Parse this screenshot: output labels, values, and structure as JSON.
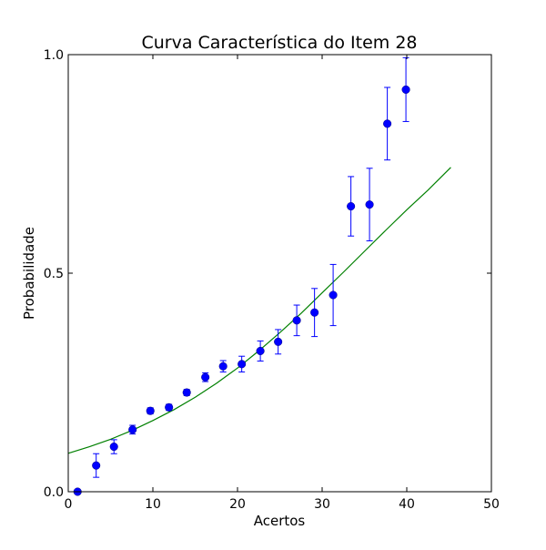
{
  "chart_data": {
    "type": "scatter",
    "title": "Curva Característica do Item 28",
    "xlabel": "Acertos",
    "ylabel": "Probabilidade",
    "xlim": [
      0,
      50
    ],
    "ylim": [
      0.0,
      1.0
    ],
    "xticks": [
      0,
      10,
      20,
      30,
      40,
      50
    ],
    "xtick_labels": [
      "0",
      "10",
      "20",
      "30",
      "40",
      "50"
    ],
    "yticks": [
      0.0,
      0.5,
      1.0
    ],
    "ytick_labels": [
      "0.0",
      "0.5",
      "1.0"
    ],
    "grid": false,
    "legend": "none",
    "colors": {
      "points": "#0000ff",
      "errorbars": "#0000ff",
      "curve": "#008000",
      "frame": "#000000"
    },
    "observed": {
      "x": [
        1.1,
        3.3,
        5.4,
        7.6,
        9.7,
        11.9,
        14.0,
        16.2,
        18.3,
        20.5,
        22.7,
        24.8,
        27.0,
        29.1,
        31.3,
        33.4,
        35.6,
        37.7,
        39.9
      ],
      "y": [
        0.0,
        0.06,
        0.103,
        0.142,
        0.185,
        0.193,
        0.227,
        0.262,
        0.287,
        0.292,
        0.322,
        0.343,
        0.392,
        0.41,
        0.45,
        0.653,
        0.657,
        0.842,
        0.92
      ],
      "err": [
        0.0,
        0.027,
        0.016,
        0.01,
        0.007,
        0.007,
        0.007,
        0.01,
        0.013,
        0.018,
        0.023,
        0.028,
        0.035,
        0.055,
        0.07,
        0.068,
        0.083,
        0.083,
        0.073
      ]
    },
    "fitted_curve": {
      "x": [
        0,
        2.5,
        5,
        7.5,
        10,
        12.5,
        15,
        17.5,
        20,
        22.5,
        25,
        27.5,
        30,
        32.5,
        35,
        37.5,
        40,
        42.5,
        45.2
      ],
      "y": [
        0.088,
        0.103,
        0.12,
        0.14,
        0.163,
        0.188,
        0.216,
        0.248,
        0.283,
        0.322,
        0.364,
        0.408,
        0.455,
        0.502,
        0.55,
        0.598,
        0.645,
        0.69,
        0.742
      ]
    }
  }
}
